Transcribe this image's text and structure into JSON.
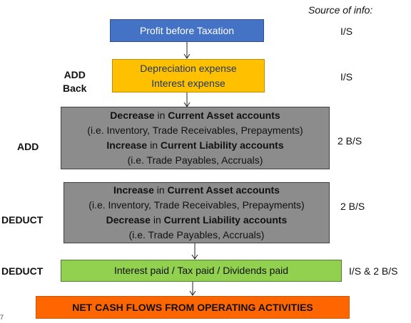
{
  "source_header": "Source of info:",
  "colors": {
    "blue": "#4472C4",
    "yellow": "#FFC000",
    "gray": "#8C8C8C",
    "green": "#92D050",
    "orange": "#FF6600"
  },
  "steps": [
    {
      "label": "",
      "source": "I/S",
      "lines": [
        {
          "parts": [
            {
              "text": "Profit before Taxation",
              "bold": false
            }
          ]
        }
      ]
    },
    {
      "label": "ADD\nBack",
      "source": "I/S",
      "lines": [
        {
          "parts": [
            {
              "text": "Depreciation expense",
              "bold": false
            }
          ]
        },
        {
          "parts": [
            {
              "text": "Interest expense",
              "bold": false
            }
          ]
        }
      ]
    },
    {
      "label": "ADD",
      "source": "2 B/S",
      "lines": [
        {
          "parts": [
            {
              "text": "Decrease",
              "bold": true
            },
            {
              "text": " in ",
              "bold": false
            },
            {
              "text": "Current Asset accounts",
              "bold": true
            }
          ]
        },
        {
          "parts": [
            {
              "text": "(i.e. Inventory, Trade Receivables, Prepayments)",
              "bold": false
            }
          ]
        },
        {
          "parts": [
            {
              "text": "Increase",
              "bold": true
            },
            {
              "text": " in ",
              "bold": false
            },
            {
              "text": "Current Liability accounts",
              "bold": true
            }
          ]
        },
        {
          "parts": [
            {
              "text": "(i.e. Trade Payables, Accruals)",
              "bold": false
            }
          ]
        }
      ]
    },
    {
      "label": "DEDUCT",
      "source": "2 B/S",
      "lines": [
        {
          "parts": [
            {
              "text": "Increase",
              "bold": true
            },
            {
              "text": " in ",
              "bold": false
            },
            {
              "text": "Current Asset accounts",
              "bold": true
            }
          ]
        },
        {
          "parts": [
            {
              "text": "(i.e. Inventory, Trade Receivables, Prepayments)",
              "bold": false
            }
          ]
        },
        {
          "parts": [
            {
              "text": "Decrease",
              "bold": true
            },
            {
              "text": " in ",
              "bold": false
            },
            {
              "text": "Current Liability accounts",
              "bold": true
            }
          ]
        },
        {
          "parts": [
            {
              "text": "(i.e. Trade Payables, Accruals)",
              "bold": false
            }
          ]
        }
      ]
    },
    {
      "label": "DEDUCT",
      "source": "I/S & 2 B/S",
      "lines": [
        {
          "parts": [
            {
              "text": "Interest paid / Tax paid / Dividends paid",
              "bold": false
            }
          ]
        }
      ]
    },
    {
      "label": "",
      "source": "",
      "lines": [
        {
          "parts": [
            {
              "text": "NET CASH FLOWS FROM OPERATING ACTIVITIES",
              "bold": true
            }
          ]
        }
      ]
    }
  ],
  "page_number": "7"
}
